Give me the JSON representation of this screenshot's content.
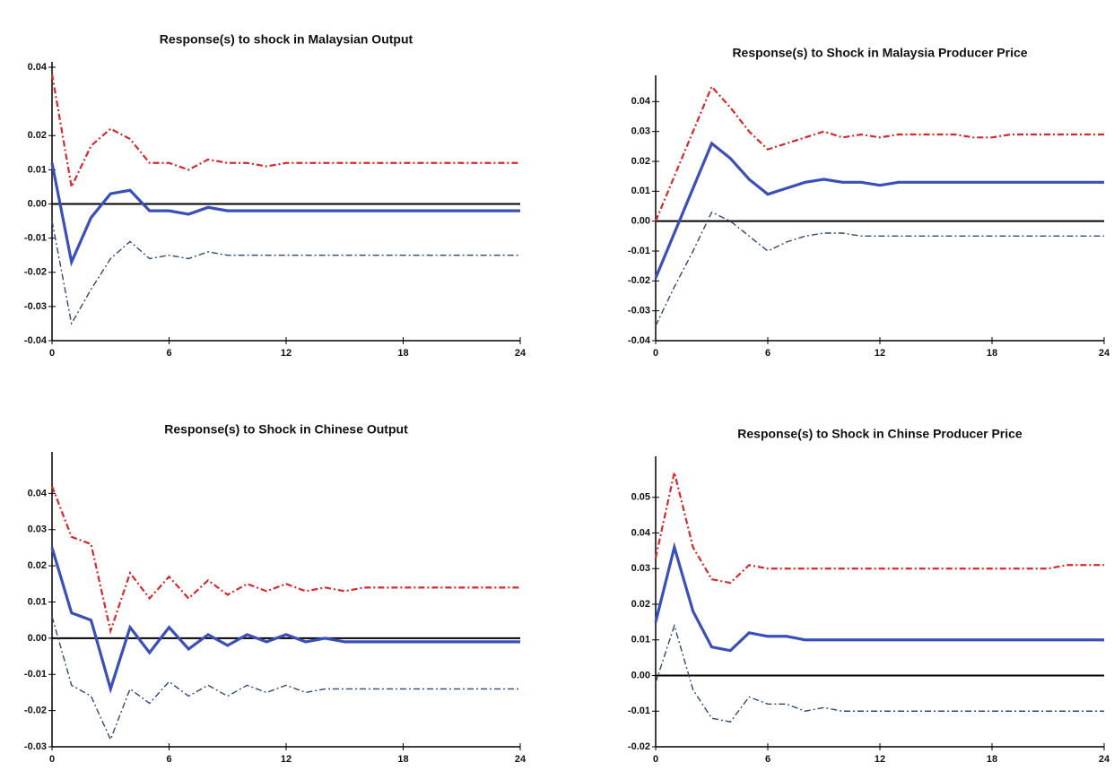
{
  "chart_data": [
    {
      "type": "line",
      "title": "Response(s) to shock in Malaysian Output",
      "x": [
        0,
        1,
        2,
        3,
        4,
        5,
        6,
        7,
        8,
        9,
        10,
        11,
        12,
        13,
        14,
        15,
        16,
        17,
        18,
        19,
        20,
        21,
        22,
        23,
        24
      ],
      "xlim": [
        0,
        24
      ],
      "xticks": [
        0,
        6,
        12,
        18,
        24
      ],
      "ylim": [
        -0.04,
        0.04
      ],
      "yticks": [
        -0.04,
        -0.03,
        -0.02,
        -0.01,
        {
          "value": 0,
          "label": "0.00"
        },
        0.01,
        0.02,
        0.04
      ],
      "series": [
        {
          "color": "#d42a2a",
          "line_style": "dash-dot",
          "values": [
            0.038,
            0.005,
            0.017,
            0.022,
            0.019,
            0.012,
            0.012,
            0.01,
            0.013,
            0.012,
            0.012,
            0.011,
            0.012,
            0.012,
            0.012,
            0.012,
            0.012,
            0.012,
            0.012,
            0.012,
            0.012,
            0.012,
            0.012,
            0.012,
            0.012
          ]
        },
        {
          "color": "#3a50b8",
          "line_style": "solid",
          "values": [
            0.012,
            -0.017,
            -0.004,
            0.003,
            0.004,
            -0.002,
            -0.002,
            -0.003,
            -0.001,
            -0.002,
            -0.002,
            -0.002,
            -0.002,
            -0.002,
            -0.002,
            -0.002,
            -0.002,
            -0.002,
            -0.002,
            -0.002,
            -0.002,
            -0.002,
            -0.002,
            -0.002,
            -0.002
          ]
        },
        {
          "color": "#2c4a78",
          "line_style": "dash-dot",
          "values": [
            -0.005,
            -0.035,
            -0.025,
            -0.016,
            -0.011,
            -0.016,
            -0.015,
            -0.016,
            -0.014,
            -0.015,
            -0.015,
            -0.015,
            -0.015,
            -0.015,
            -0.015,
            -0.015,
            -0.015,
            -0.015,
            -0.015,
            -0.015,
            -0.015,
            -0.015,
            -0.015,
            -0.015,
            -0.015
          ]
        }
      ]
    },
    {
      "type": "line",
      "title": "Response(s) to Shock in Malaysia Producer Price",
      "x": [
        0,
        1,
        2,
        3,
        4,
        5,
        6,
        7,
        8,
        9,
        10,
        11,
        12,
        13,
        14,
        15,
        16,
        17,
        18,
        19,
        20,
        21,
        22,
        23,
        24
      ],
      "xlim": [
        0,
        24
      ],
      "xticks": [
        0,
        6,
        12,
        18,
        24
      ],
      "ylim": [
        -0.04,
        0.047
      ],
      "yticks": [
        -0.04,
        -0.03,
        -0.02,
        -0.01,
        {
          "value": 0,
          "label": "0.00"
        },
        0.01,
        0.02,
        0.03,
        0.04
      ],
      "series": [
        {
          "color": "#d42a2a",
          "line_style": "dash-dot",
          "values": [
            0.0,
            0.015,
            0.03,
            0.045,
            0.038,
            0.03,
            0.024,
            0.026,
            0.028,
            0.03,
            0.028,
            0.029,
            0.028,
            0.029,
            0.029,
            0.029,
            0.029,
            0.028,
            0.028,
            0.029,
            0.029,
            0.029,
            0.029,
            0.029,
            0.029
          ]
        },
        {
          "color": "#3a50b8",
          "line_style": "solid",
          "values": [
            -0.019,
            -0.004,
            0.011,
            0.026,
            0.021,
            0.014,
            0.009,
            0.011,
            0.013,
            0.014,
            0.013,
            0.013,
            0.012,
            0.013,
            0.013,
            0.013,
            0.013,
            0.013,
            0.013,
            0.013,
            0.013,
            0.013,
            0.013,
            0.013,
            0.013
          ]
        },
        {
          "color": "#2c4a78",
          "line_style": "dash-dot",
          "values": [
            -0.035,
            -0.022,
            -0.01,
            0.003,
            0.0,
            -0.005,
            -0.01,
            -0.007,
            -0.005,
            -0.004,
            -0.004,
            -0.005,
            -0.005,
            -0.005,
            -0.005,
            -0.005,
            -0.005,
            -0.005,
            -0.005,
            -0.005,
            -0.005,
            -0.005,
            -0.005,
            -0.005,
            -0.005
          ]
        }
      ]
    },
    {
      "type": "line",
      "title": "Response(s) to Shock in Chinese Output",
      "x": [
        0,
        1,
        2,
        3,
        4,
        5,
        6,
        7,
        8,
        9,
        10,
        11,
        12,
        13,
        14,
        15,
        16,
        17,
        18,
        19,
        20,
        21,
        22,
        23,
        24
      ],
      "xlim": [
        0,
        24
      ],
      "xticks": [
        0,
        6,
        12,
        18,
        24
      ],
      "ylim": [
        -0.03,
        0.05
      ],
      "yticks": [
        -0.03,
        -0.02,
        -0.01,
        {
          "value": 0,
          "label": "0.00"
        },
        0.01,
        0.02,
        0.03,
        0.04
      ],
      "series": [
        {
          "color": "#d42a2a",
          "line_style": "dash-dot",
          "values": [
            0.042,
            0.028,
            0.026,
            0.002,
            0.018,
            0.011,
            0.017,
            0.011,
            0.016,
            0.012,
            0.015,
            0.013,
            0.015,
            0.013,
            0.014,
            0.013,
            0.014,
            0.014,
            0.014,
            0.014,
            0.014,
            0.014,
            0.014,
            0.014,
            0.014
          ]
        },
        {
          "color": "#3a50b8",
          "line_style": "solid",
          "values": [
            0.025,
            0.007,
            0.005,
            -0.014,
            0.003,
            -0.004,
            0.003,
            -0.003,
            0.001,
            -0.002,
            0.001,
            -0.001,
            0.001,
            -0.001,
            0,
            -0.001,
            -0.001,
            -0.001,
            -0.001,
            -0.001,
            -0.001,
            -0.001,
            -0.001,
            -0.001,
            -0.001
          ]
        },
        {
          "color": "#2c4a78",
          "line_style": "dash-dot",
          "values": [
            0.006,
            -0.013,
            -0.016,
            -0.028,
            -0.014,
            -0.018,
            -0.012,
            -0.016,
            -0.013,
            -0.016,
            -0.013,
            -0.015,
            -0.013,
            -0.015,
            -0.014,
            -0.014,
            -0.014,
            -0.014,
            -0.014,
            -0.014,
            -0.014,
            -0.014,
            -0.014,
            -0.014,
            -0.014
          ]
        }
      ]
    },
    {
      "type": "line",
      "title": "Response(s) to Shock in Chinse Producer Price",
      "x": [
        0,
        1,
        2,
        3,
        4,
        5,
        6,
        7,
        8,
        9,
        10,
        11,
        12,
        13,
        14,
        15,
        16,
        17,
        18,
        19,
        20,
        21,
        22,
        23,
        24
      ],
      "xlim": [
        0,
        24
      ],
      "xticks": [
        0,
        6,
        12,
        18,
        24
      ],
      "ylim": [
        -0.02,
        0.06
      ],
      "yticks": [
        -0.02,
        -0.01,
        {
          "value": 0,
          "label": "0.00"
        },
        0.01,
        0.02,
        0.03,
        0.04,
        0.05
      ],
      "series": [
        {
          "color": "#d42a2a",
          "line_style": "dash-dot",
          "values": [
            0.033,
            0.057,
            0.036,
            0.027,
            0.026,
            0.031,
            0.03,
            0.03,
            0.03,
            0.03,
            0.03,
            0.03,
            0.03,
            0.03,
            0.03,
            0.03,
            0.03,
            0.03,
            0.03,
            0.03,
            0.03,
            0.03,
            0.031,
            0.031,
            0.031
          ]
        },
        {
          "color": "#3a50b8",
          "line_style": "solid",
          "values": [
            0.015,
            0.036,
            0.018,
            0.008,
            0.007,
            0.012,
            0.011,
            0.011,
            0.01,
            0.01,
            0.01,
            0.01,
            0.01,
            0.01,
            0.01,
            0.01,
            0.01,
            0.01,
            0.01,
            0.01,
            0.01,
            0.01,
            0.01,
            0.01,
            0.01
          ]
        },
        {
          "color": "#2c4a78",
          "line_style": "dash-dot",
          "values": [
            -0.002,
            0.014,
            -0.004,
            -0.012,
            -0.013,
            -0.006,
            -0.008,
            -0.008,
            -0.01,
            -0.009,
            -0.01,
            -0.01,
            -0.01,
            -0.01,
            -0.01,
            -0.01,
            -0.01,
            -0.01,
            -0.01,
            -0.01,
            -0.01,
            -0.01,
            -0.01,
            -0.01,
            -0.01
          ]
        }
      ]
    }
  ]
}
